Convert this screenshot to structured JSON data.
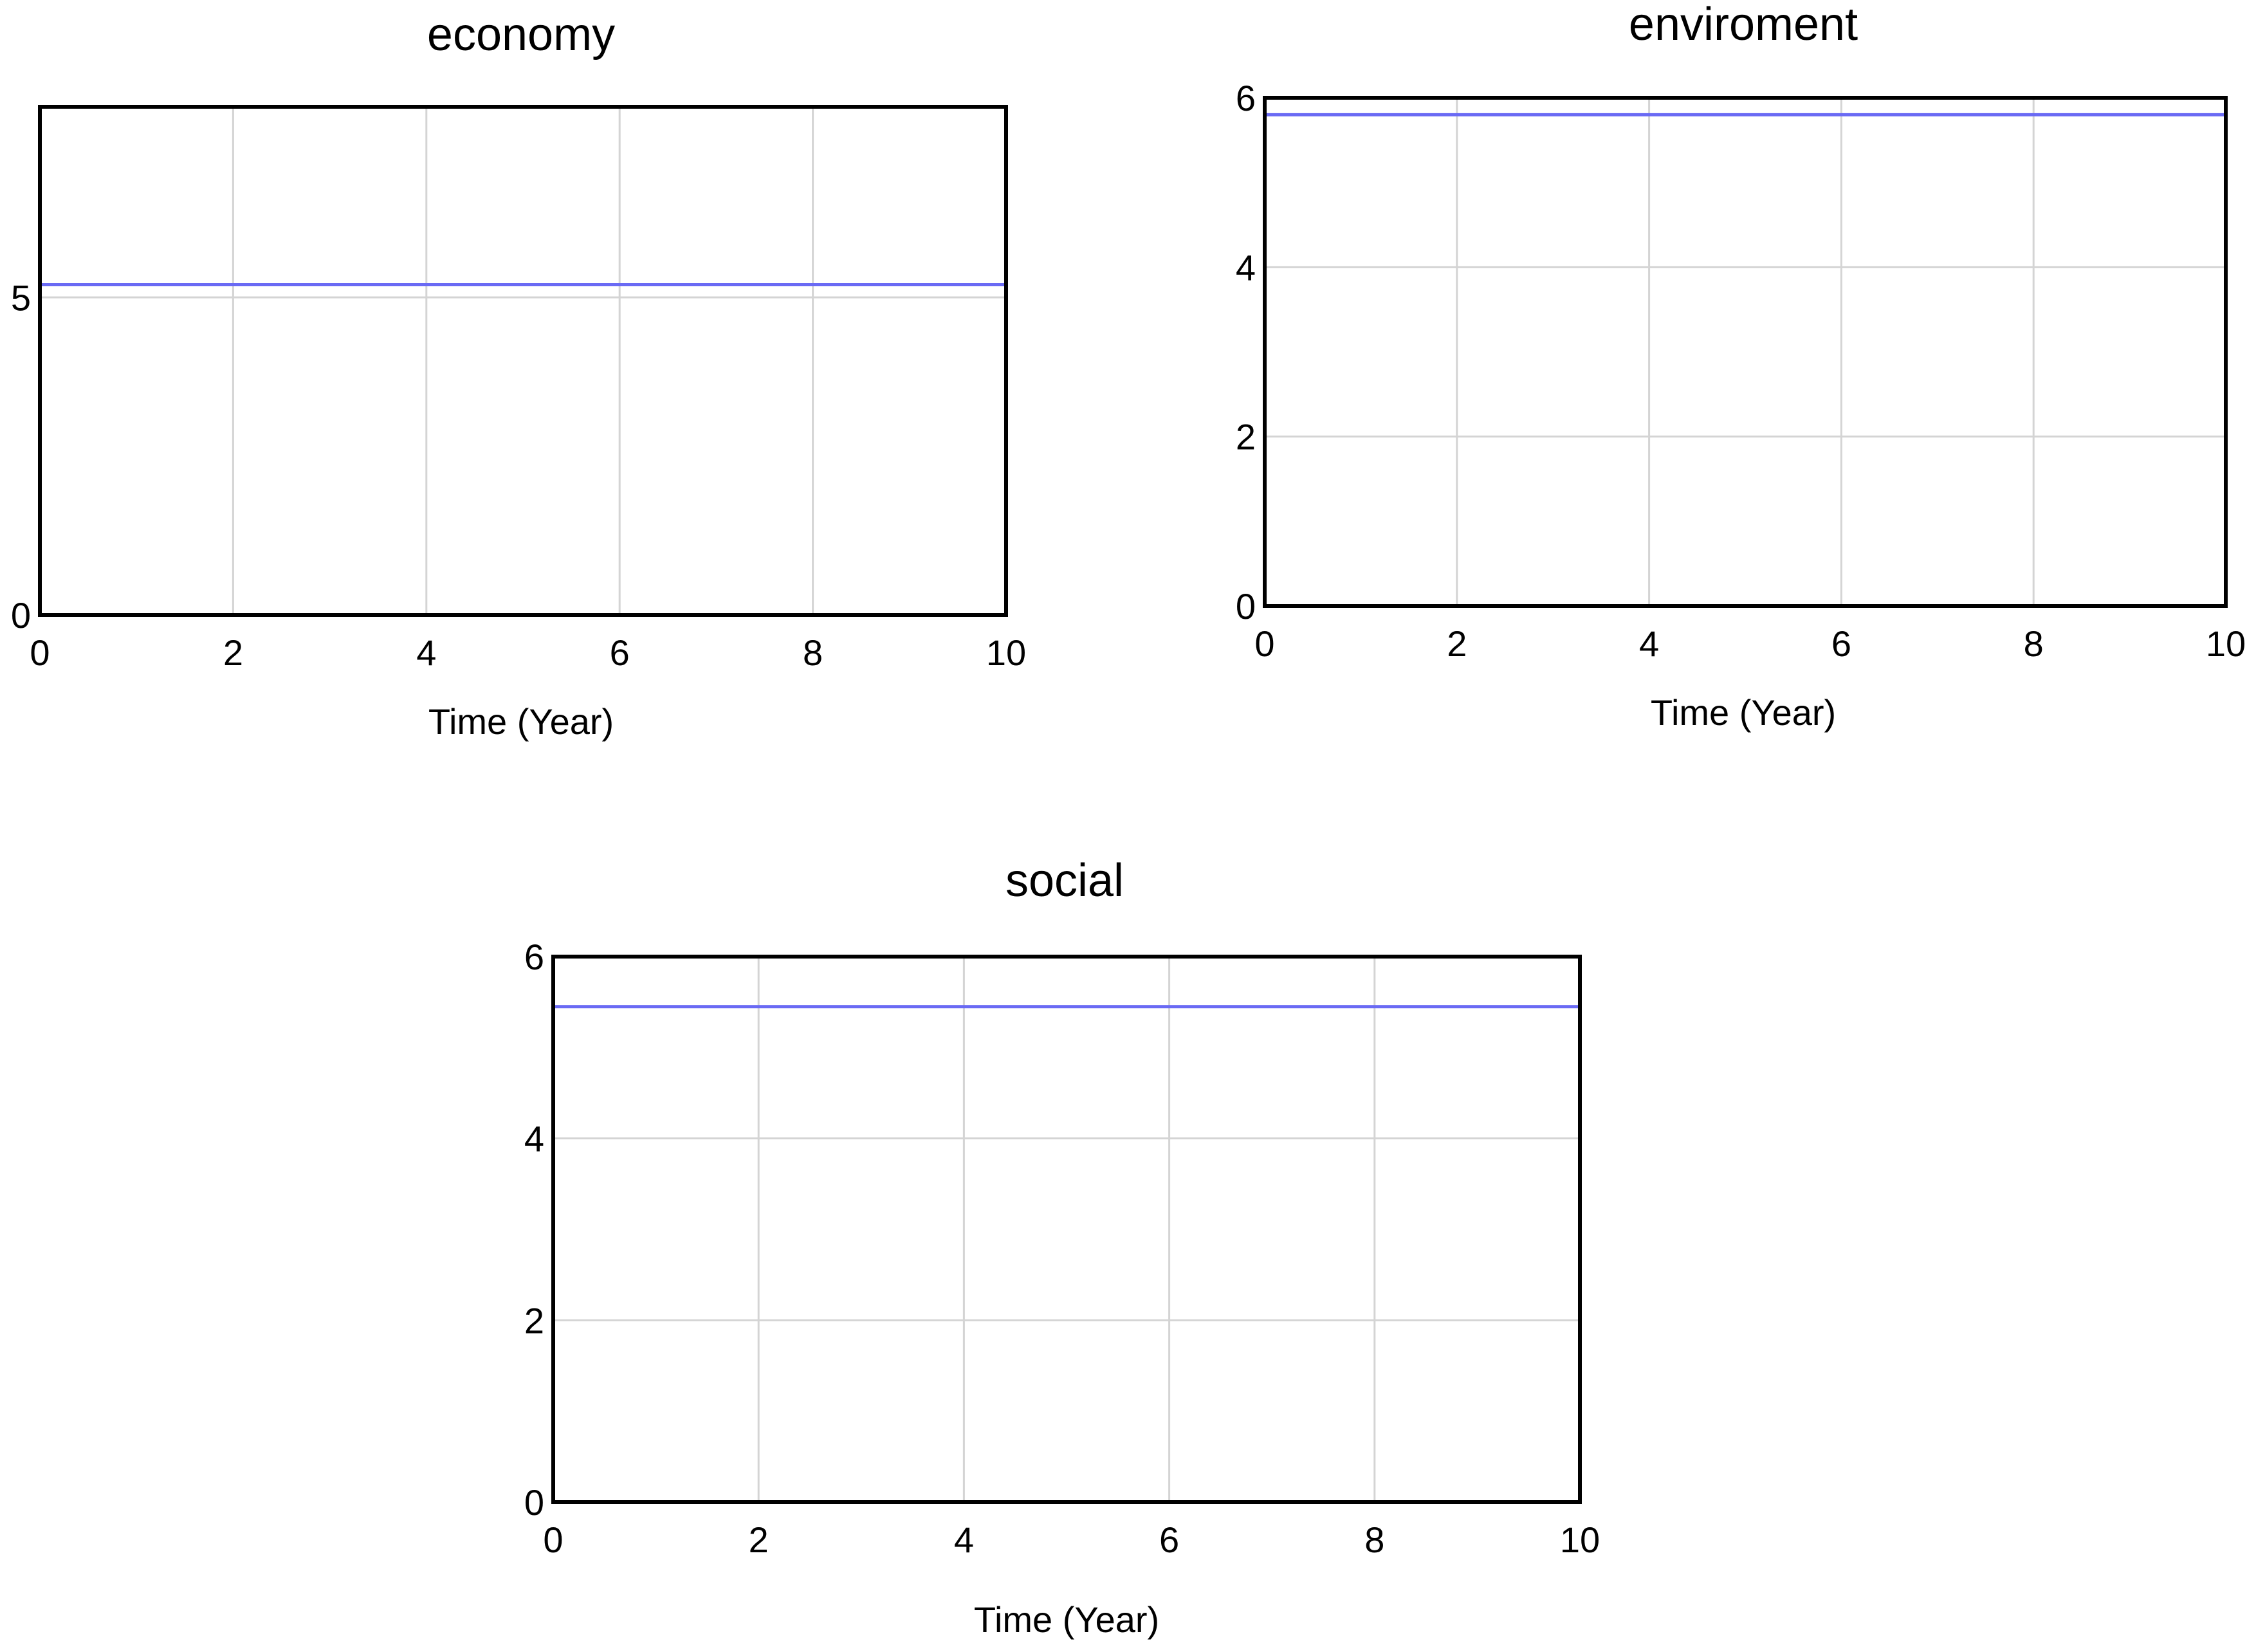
{
  "chart_data": [
    {
      "type": "line",
      "title": "economy",
      "xlabel": "Time (Year)",
      "ylabel": "",
      "xlim": [
        0,
        10
      ],
      "ylim": [
        0,
        8
      ],
      "x_ticks": [
        "0",
        "2",
        "4",
        "6",
        "8",
        "10"
      ],
      "y_ticks": [
        "0",
        "5"
      ],
      "y_tick_values": [
        0,
        5
      ],
      "grid": true,
      "series": [
        {
          "x": [
            0,
            10
          ],
          "values": [
            5.2,
            5.2
          ],
          "color": "#6a6af4"
        }
      ]
    },
    {
      "type": "line",
      "title": "enviroment",
      "xlabel": "Time (Year)",
      "ylabel": "",
      "xlim": [
        0,
        10
      ],
      "ylim": [
        0,
        6
      ],
      "x_ticks": [
        "0",
        "2",
        "4",
        "6",
        "8",
        "10"
      ],
      "y_ticks": [
        "0",
        "2",
        "4",
        "6"
      ],
      "y_tick_values": [
        0,
        2,
        4,
        6
      ],
      "grid": true,
      "series": [
        {
          "x": [
            0,
            10
          ],
          "values": [
            5.8,
            5.8
          ],
          "color": "#6a6af4"
        }
      ]
    },
    {
      "type": "line",
      "title": "social",
      "xlabel": "Time (Year)",
      "ylabel": "",
      "xlim": [
        0,
        10
      ],
      "ylim": [
        0,
        6
      ],
      "x_ticks": [
        "0",
        "2",
        "4",
        "6",
        "8",
        "10"
      ],
      "y_ticks": [
        "0",
        "2",
        "4",
        "6"
      ],
      "y_tick_values": [
        0,
        2,
        4,
        6
      ],
      "grid": true,
      "series": [
        {
          "x": [
            0,
            10
          ],
          "values": [
            5.45,
            5.45
          ],
          "color": "#6a6af4"
        }
      ]
    }
  ]
}
